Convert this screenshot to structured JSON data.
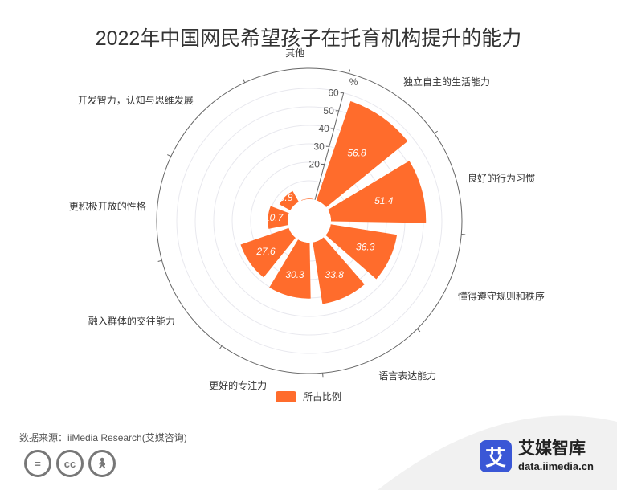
{
  "title": "2022年中国网民希望孩子在托育机构提升的能力",
  "chart_data": {
    "type": "bar",
    "polar": true,
    "categories": [
      "独立自主的生活能力",
      "良好的行为习惯",
      "懂得遵守规则和秩序",
      "语言表达能力",
      "更好的专注力",
      "融入群体的交往能力",
      "更积极开放的性格",
      "开发智力，认知与思维发展",
      "其他"
    ],
    "series": [
      {
        "name": "所占比例",
        "values": [
          56.8,
          51.4,
          36.3,
          33.8,
          30.3,
          27.6,
          10.7,
          6.8,
          0.3
        ]
      }
    ],
    "ylabel": "%",
    "ylim": [
      0,
      60
    ],
    "ticks": [
      "20",
      "30",
      "40",
      "50",
      "60"
    ],
    "value_labels": [
      "56.8",
      "51.4",
      "36.3",
      "33.8",
      "30.3",
      "27.6",
      "10.7",
      "6.8",
      "0.3"
    ],
    "legend": "bottom",
    "grid": true,
    "bar_color": "#ff6c2c"
  },
  "source": "数据来源：iiMedia Research(艾媒咨询)",
  "license_icons": [
    "equals-icon",
    "cc-icon",
    "person-icon"
  ],
  "brand": {
    "logo_text": "艾",
    "name": "艾媒智库",
    "url": "data.iimedia.cn"
  }
}
